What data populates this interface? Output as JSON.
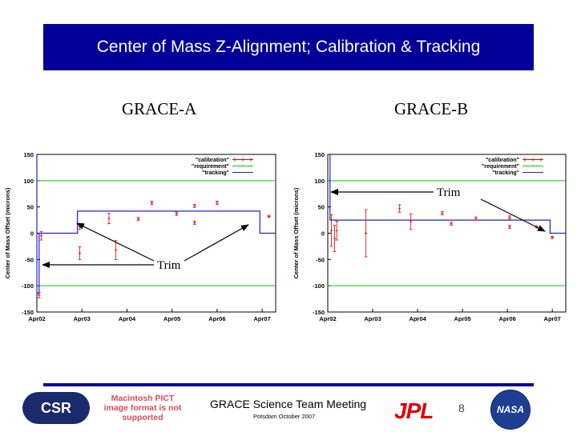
{
  "slide": {
    "title": "Center of Mass Z-Alignment; Calibration & Tracking",
    "panel_a_label": "GRACE-A",
    "panel_b_label": "GRACE-B",
    "trim_label_a": "Trim",
    "trim_label_b": "Trim"
  },
  "footer": {
    "meeting": "GRACE Science Team Meeting",
    "place": "Potsdam October 2007",
    "page": "8",
    "csr_logo_text": "CSR",
    "pict_notice": "Macintosh PICT image format is not supported",
    "jpl_logo_text": "JPL",
    "nasa_logo_text": "NASA"
  },
  "colors": {
    "title_bg": "#000099",
    "calibration": "#e00000",
    "requirement": "#00cc00",
    "tracking": "#2222cc"
  },
  "chart_data": [
    {
      "type": "line",
      "panel": "GRACE-A",
      "ylabel": "Center of Mass Offset (microns)",
      "xlabel": "",
      "ylim": [
        -150,
        150
      ],
      "yticks": [
        -150,
        -100,
        -50,
        0,
        50,
        100,
        150
      ],
      "xlim": [
        0,
        5.3
      ],
      "xticks": [
        0,
        1,
        2,
        3,
        4,
        5
      ],
      "xtick_labels": [
        "Apr02",
        "Apr03",
        "Apr04",
        "Apr05",
        "Apr06",
        "Apr07"
      ],
      "legend": {
        "position": "top-right",
        "entries": [
          "\"calibration\"",
          "\"requirement\"",
          "\"tracking\""
        ]
      },
      "series": [
        {
          "name": "\"requirement\"",
          "style": "hline",
          "values": [
            100,
            -100
          ]
        },
        {
          "name": "\"tracking\"",
          "style": "step",
          "x": [
            0,
            0,
            0.05,
            0.05,
            0.9,
            0.9,
            4.95,
            4.95,
            5.3
          ],
          "y": [
            150,
            -115,
            -115,
            0,
            0,
            42,
            42,
            0,
            0
          ]
        },
        {
          "name": "\"calibration\"",
          "style": "errorbar",
          "points": [
            {
              "x": 0.05,
              "y": -118,
              "err": 5
            },
            {
              "x": 0.1,
              "y": -5,
              "err": 8
            },
            {
              "x": 0.95,
              "y": 12,
              "err": 5
            },
            {
              "x": 0.95,
              "y": -38,
              "err": 12
            },
            {
              "x": 1.6,
              "y": 28,
              "err": 10
            },
            {
              "x": 1.75,
              "y": -32,
              "err": 18
            },
            {
              "x": 2.25,
              "y": 27,
              "err": 3
            },
            {
              "x": 2.55,
              "y": 58,
              "err": 3
            },
            {
              "x": 3.1,
              "y": 37,
              "err": 3
            },
            {
              "x": 3.5,
              "y": 52,
              "err": 3
            },
            {
              "x": 3.5,
              "y": 20,
              "err": 3
            },
            {
              "x": 4.0,
              "y": 58,
              "err": 3
            },
            {
              "x": 5.15,
              "y": 32,
              "err": 2
            }
          ]
        }
      ]
    },
    {
      "type": "line",
      "panel": "GRACE-B",
      "ylabel": "Center of Mass Offset (microns)",
      "xlabel": "",
      "ylim": [
        -150,
        150
      ],
      "yticks": [
        -150,
        -100,
        -50,
        0,
        50,
        100,
        150
      ],
      "xlim": [
        0,
        5.3
      ],
      "xticks": [
        0,
        1,
        2,
        3,
        4,
        5
      ],
      "xtick_labels": [
        "Apr02",
        "Apr03",
        "Apr04",
        "Apr05",
        "Apr06",
        "Apr07"
      ],
      "legend": {
        "position": "top-right",
        "entries": [
          "\"calibration\"",
          "\"requirement\"",
          "\"tracking\""
        ]
      },
      "series": [
        {
          "name": "\"requirement\"",
          "style": "hline",
          "values": [
            100,
            -100
          ]
        },
        {
          "name": "\"tracking\"",
          "style": "step",
          "x": [
            0.05,
            0.05,
            4.95,
            4.95,
            5.3
          ],
          "y": [
            150,
            25,
            25,
            0,
            0
          ]
        },
        {
          "name": "\"calibration\"",
          "style": "errorbar",
          "points": [
            {
              "x": 0.08,
              "y": 5,
              "err": 30
            },
            {
              "x": 0.15,
              "y": -10,
              "err": 25
            },
            {
              "x": 0.2,
              "y": 5,
              "err": 18
            },
            {
              "x": 0.85,
              "y": 0,
              "err": 45
            },
            {
              "x": 1.6,
              "y": 47,
              "err": 7
            },
            {
              "x": 1.85,
              "y": 22,
              "err": 15
            },
            {
              "x": 2.55,
              "y": 38,
              "err": 3
            },
            {
              "x": 2.75,
              "y": 18,
              "err": 3
            },
            {
              "x": 3.3,
              "y": 28,
              "err": 3
            },
            {
              "x": 4.05,
              "y": 30,
              "err": 3
            },
            {
              "x": 4.05,
              "y": 12,
              "err": 3
            },
            {
              "x": 4.65,
              "y": 12,
              "err": 2
            },
            {
              "x": 5.0,
              "y": -8,
              "err": 2
            }
          ]
        }
      ]
    }
  ]
}
